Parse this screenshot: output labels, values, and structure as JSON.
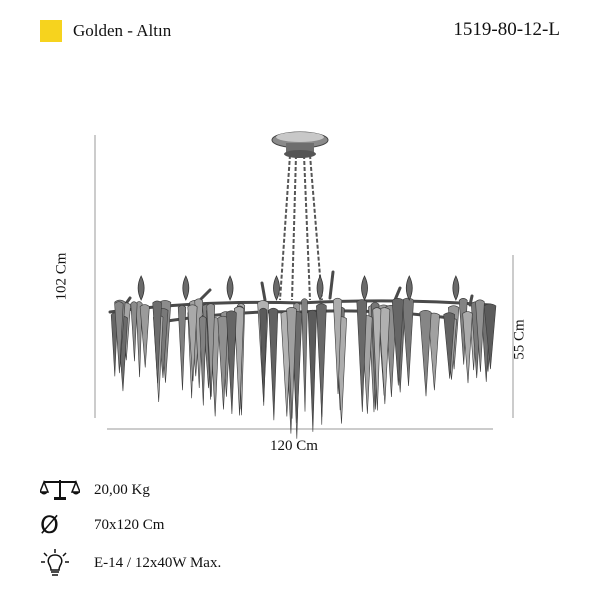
{
  "header": {
    "swatch_color": "#f6d31e",
    "color_name": "Golden - Altın",
    "product_code": "1519-80-12-L"
  },
  "dimensions": {
    "height_total": "102 Cm",
    "width": "120 Cm",
    "body_height": "55 Cm"
  },
  "specs": {
    "weight": "20,00 Kg",
    "size": "70x120 Cm",
    "bulb": "E-14 / 12x40W Max.",
    "diameter_symbol": "Ø"
  },
  "icons": [
    "scale-icon",
    "diameter-icon",
    "bulb-icon"
  ]
}
